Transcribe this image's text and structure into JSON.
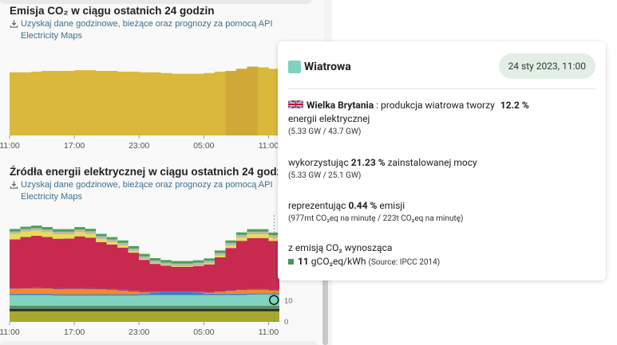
{
  "left": {
    "emissions_title": "Emisja CO₂ w ciągu ostatnich 24 godzin",
    "emissions_download": [
      "Uzyskaj dane godzinowe, bieżące oraz prognozy za pomocą API",
      "Electricity Maps"
    ],
    "sources_title": "Źródła energii elektrycznej w ciągu ostatnich 24 godzin",
    "sources_download": [
      "Uzyskaj dane godzinowe, bieżące oraz prognozy za pomocą API",
      "Electricity Maps"
    ],
    "x_ticks": [
      "11:00",
      "17:00",
      "23:00",
      "05:00",
      "11:00"
    ]
  },
  "chart_data": [
    {
      "type": "bar",
      "title": "Emisja CO₂ w ciągu ostatnich 24 godzin",
      "x": [
        "11:00",
        "12:00",
        "13:00",
        "14:00",
        "15:00",
        "16:00",
        "17:00",
        "18:00",
        "19:00",
        "20:00",
        "21:00",
        "22:00",
        "23:00",
        "00:00",
        "01:00",
        "02:00",
        "03:00",
        "04:00",
        "05:00",
        "06:00",
        "07:00",
        "08:00",
        "09:00",
        "10:00",
        "11:00"
      ],
      "values": [
        88,
        88,
        89,
        90,
        90,
        90,
        91,
        91,
        90,
        90,
        89,
        89,
        88,
        88,
        87,
        86,
        86,
        86,
        87,
        89,
        90,
        93,
        96,
        95,
        93
      ],
      "x_tick_labels": [
        "11:00",
        "17:00",
        "23:00",
        "05:00",
        "11:00"
      ],
      "color": "#d9b83b",
      "highlight_color": "#cfa938",
      "note": ""
    },
    {
      "type": "area",
      "title": "Źródła energii elektrycznej w ciągu ostatnich 24 godzin",
      "x": [
        "11:00",
        "12:00",
        "13:00",
        "14:00",
        "15:00",
        "16:00",
        "17:00",
        "18:00",
        "19:00",
        "20:00",
        "21:00",
        "22:00",
        "23:00",
        "00:00",
        "01:00",
        "02:00",
        "03:00",
        "04:00",
        "05:00",
        "06:00",
        "07:00",
        "08:00",
        "09:00",
        "10:00",
        "11:00"
      ],
      "x_tick_labels": [
        "11:00",
        "17:00",
        "23:00",
        "05:00",
        "11:00"
      ],
      "y_ticks": [
        0,
        10
      ],
      "ylim": [
        0,
        45
      ],
      "series": [
        {
          "color": "#a8a830",
          "values": [
            5,
            5,
            5,
            5,
            5,
            5,
            5,
            5,
            5,
            5,
            5,
            5,
            5,
            5,
            5,
            5,
            5,
            5,
            5,
            5,
            5,
            5,
            5,
            5,
            5
          ]
        },
        {
          "color": "#2a2a2a",
          "values": [
            1.2,
            1.2,
            1.2,
            1.2,
            1.2,
            1.2,
            1.2,
            1.2,
            1.2,
            1.2,
            1.2,
            1.2,
            1.2,
            1.2,
            1.2,
            1.2,
            1.2,
            1.2,
            1.2,
            1.2,
            1.2,
            1.2,
            1.2,
            1.2,
            1.2
          ]
        },
        {
          "color": "#5a9060",
          "values": [
            1.5,
            1.5,
            1.5,
            1.5,
            1.5,
            1.5,
            1.5,
            1.5,
            1.5,
            1.5,
            1.5,
            1.5,
            1.5,
            1.5,
            1.5,
            1.5,
            1.5,
            1.5,
            1.5,
            1.5,
            1.5,
            1.5,
            1.5,
            1.5,
            1.5
          ]
        },
        {
          "color": "#7fd3c0",
          "values": [
            5,
            5,
            5,
            5,
            4.8,
            4.8,
            4.8,
            4.8,
            4.8,
            4.8,
            4.8,
            4.8,
            5,
            5,
            5,
            5,
            5,
            5,
            5,
            5,
            5,
            5,
            5.2,
            5.3,
            5.33
          ]
        },
        {
          "color": "#3b7ad6",
          "values": [
            0.5,
            0.5,
            0.5,
            0.5,
            0.5,
            0.5,
            0.5,
            0.5,
            0.5,
            0.5,
            0.5,
            0.5,
            0.5,
            1.2,
            1.5,
            1.5,
            1.5,
            1.2,
            0.5,
            0.5,
            0.5,
            0.5,
            0.5,
            0.5,
            0.5
          ]
        },
        {
          "color": "#f18a2a",
          "values": [
            2.5,
            2.6,
            2.7,
            2.6,
            2.5,
            2.6,
            2.6,
            2.5,
            2.4,
            2.2,
            1.8,
            1.4,
            0.8,
            0.2,
            0,
            0,
            0,
            0.2,
            0.6,
            1.0,
            1.4,
            1.8,
            1.9,
            1.8,
            1.4
          ]
        },
        {
          "color": "#8a3a7a",
          "values": [
            0.4,
            0.4,
            0.4,
            0.4,
            0.4,
            0.4,
            0.4,
            0.4,
            0.4,
            0.4,
            0.4,
            0.4,
            0.4,
            0.4,
            0.4,
            0.4,
            0.4,
            0.4,
            0.4,
            0.4,
            0.4,
            0.4,
            0.4,
            0.4,
            0.4
          ]
        },
        {
          "color": "#c8294f",
          "values": [
            23,
            24,
            24.5,
            24,
            23.5,
            23.5,
            24.5,
            24,
            22,
            21,
            20,
            18,
            15,
            13,
            12,
            11.5,
            11.5,
            12,
            13,
            16,
            20,
            23,
            24,
            24,
            23
          ]
        },
        {
          "color": "#e8dc5a",
          "values": [
            2.5,
            2.5,
            2.4,
            2.3,
            2.1,
            2,
            2,
            1.8,
            1.5,
            1.2,
            1,
            0.7,
            0.4,
            0.3,
            0.3,
            0.3,
            0.3,
            0.3,
            0.5,
            0.8,
            1.2,
            1.6,
            1.8,
            1.8,
            1.6
          ]
        },
        {
          "color": "#bdb9aa",
          "values": [
            1.2,
            1.2,
            1.2,
            1.2,
            1.2,
            1.2,
            1.2,
            1.2,
            1.2,
            1.2,
            1.2,
            1.2,
            1.2,
            1.2,
            1.2,
            1.2,
            1.2,
            1.2,
            1.2,
            1.2,
            1.2,
            1.2,
            1.2,
            1.2,
            1.2
          ]
        },
        {
          "color": "#4aa35a",
          "values": [
            1.2,
            1.2,
            1.2,
            1.2,
            1.2,
            1.2,
            1.2,
            1.2,
            1.2,
            1.2,
            1.2,
            1.2,
            1.2,
            1.2,
            1.2,
            1.2,
            1.2,
            1.2,
            1.2,
            1.2,
            1.2,
            1.2,
            1.2,
            1.2,
            1.2
          ]
        }
      ],
      "hover_index": 24
    }
  ],
  "tooltip": {
    "source": "Wiatrowa",
    "swatch_color": "#7fd3c0",
    "date": "24 sty 2023, 11:00",
    "country": "Wielka Brytania",
    "production_text": ": produkcja wiatrowa tworzy",
    "production_pct": "12.2 %",
    "production_tail": "energii elektrycznej",
    "production_detail": "(5.33 GW / 43.7 GW)",
    "capacity_pre": "wykorzystując",
    "capacity_pct": "21.23 %",
    "capacity_post": "zainstalowanej mocy",
    "capacity_detail": "(5.33 GW / 25.1 GW)",
    "emission_pre": "reprezentując",
    "emission_pct": "0.44 %",
    "emission_post": "emisji",
    "emission_detail": "(977mt CO₂eq na minutę / 223t CO₂eq na minutę)",
    "intensity_pre": "z emisją CO₂ wynosząca",
    "intensity_value": "11",
    "intensity_unit": "gCO₂eq/kWh",
    "intensity_source": "(Source: IPCC 2014)",
    "co2_color": "#3c9a56"
  }
}
